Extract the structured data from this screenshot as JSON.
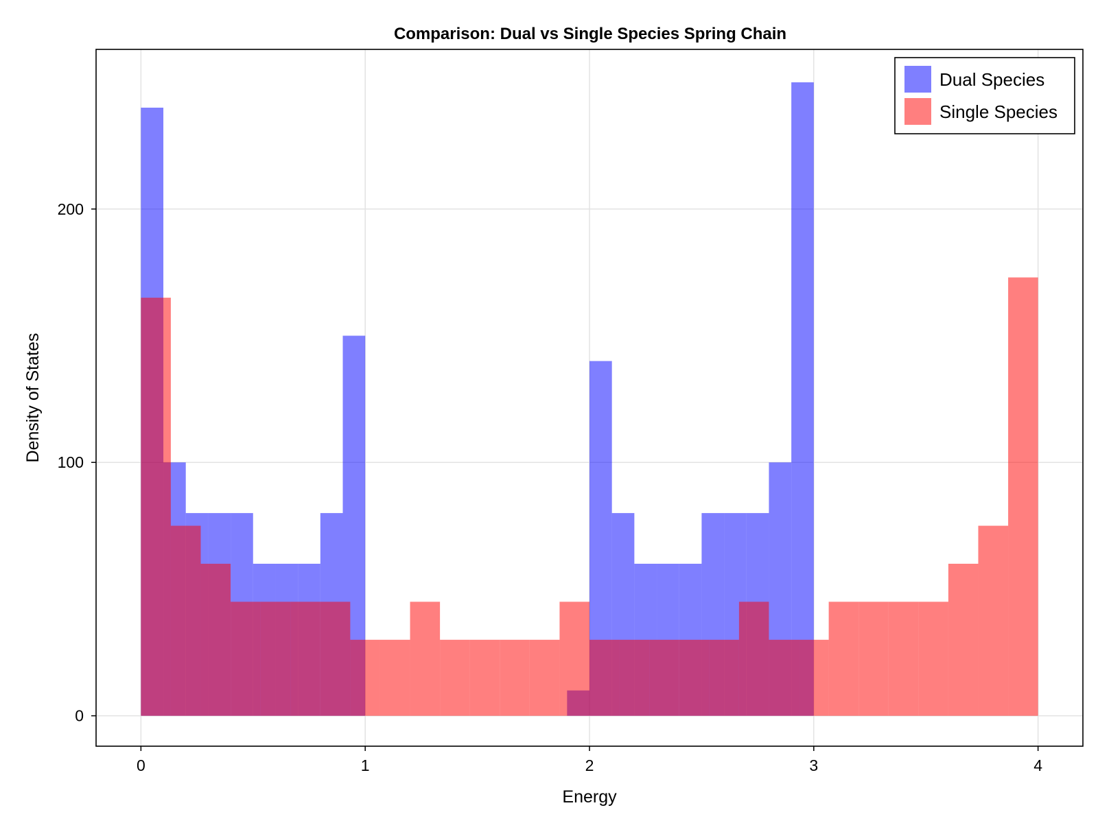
{
  "chart_data": {
    "type": "bar",
    "title": "Comparison: Dual vs Single Species Spring Chain",
    "xlabel": "Energy",
    "ylabel": "Density of States",
    "xlim": [
      -0.2,
      4.2
    ],
    "ylim": [
      -12,
      263
    ],
    "xticks": [
      "0",
      "1",
      "2",
      "3",
      "4"
    ],
    "yticks": [
      "0",
      "100",
      "200"
    ],
    "grid": true,
    "legend_position": "top-right",
    "series": [
      {
        "name": "Dual Species",
        "color": "#0000ff",
        "opacity": 0.5,
        "bins": [
          {
            "x0": 0.0,
            "x1": 0.1,
            "value": 240
          },
          {
            "x0": 0.1,
            "x1": 0.2,
            "value": 100
          },
          {
            "x0": 0.2,
            "x1": 0.3,
            "value": 80
          },
          {
            "x0": 0.3,
            "x1": 0.4,
            "value": 80
          },
          {
            "x0": 0.4,
            "x1": 0.5,
            "value": 80
          },
          {
            "x0": 0.5,
            "x1": 0.6,
            "value": 60
          },
          {
            "x0": 0.6,
            "x1": 0.7,
            "value": 60
          },
          {
            "x0": 0.7,
            "x1": 0.8,
            "value": 60
          },
          {
            "x0": 0.8,
            "x1": 0.9,
            "value": 80
          },
          {
            "x0": 0.9,
            "x1": 1.0,
            "value": 150
          },
          {
            "x0": 1.9,
            "x1": 2.0,
            "value": 10
          },
          {
            "x0": 2.0,
            "x1": 2.1,
            "value": 140
          },
          {
            "x0": 2.1,
            "x1": 2.2,
            "value": 80
          },
          {
            "x0": 2.2,
            "x1": 2.3,
            "value": 60
          },
          {
            "x0": 2.3,
            "x1": 2.4,
            "value": 60
          },
          {
            "x0": 2.4,
            "x1": 2.5,
            "value": 60
          },
          {
            "x0": 2.5,
            "x1": 2.6,
            "value": 80
          },
          {
            "x0": 2.6,
            "x1": 2.7,
            "value": 80
          },
          {
            "x0": 2.7,
            "x1": 2.8,
            "value": 80
          },
          {
            "x0": 2.8,
            "x1": 2.9,
            "value": 100
          },
          {
            "x0": 2.9,
            "x1": 3.0,
            "value": 250
          }
        ]
      },
      {
        "name": "Single Species",
        "color": "#ff0000",
        "opacity": 0.5,
        "bins": [
          {
            "x0": 0.0,
            "x1": 0.1333,
            "value": 165
          },
          {
            "x0": 0.1333,
            "x1": 0.2667,
            "value": 75
          },
          {
            "x0": 0.2667,
            "x1": 0.4,
            "value": 60
          },
          {
            "x0": 0.4,
            "x1": 0.5333,
            "value": 45
          },
          {
            "x0": 0.5333,
            "x1": 0.6667,
            "value": 45
          },
          {
            "x0": 0.6667,
            "x1": 0.8,
            "value": 45
          },
          {
            "x0": 0.8,
            "x1": 0.9333,
            "value": 45
          },
          {
            "x0": 0.9333,
            "x1": 1.0667,
            "value": 30
          },
          {
            "x0": 1.0667,
            "x1": 1.2,
            "value": 30
          },
          {
            "x0": 1.2,
            "x1": 1.3333,
            "value": 45
          },
          {
            "x0": 1.3333,
            "x1": 1.4667,
            "value": 30
          },
          {
            "x0": 1.4667,
            "x1": 1.6,
            "value": 30
          },
          {
            "x0": 1.6,
            "x1": 1.7333,
            "value": 30
          },
          {
            "x0": 1.7333,
            "x1": 1.8667,
            "value": 30
          },
          {
            "x0": 1.8667,
            "x1": 2.0,
            "value": 45
          },
          {
            "x0": 2.0,
            "x1": 2.1333,
            "value": 30
          },
          {
            "x0": 2.1333,
            "x1": 2.2667,
            "value": 30
          },
          {
            "x0": 2.2667,
            "x1": 2.4,
            "value": 30
          },
          {
            "x0": 2.4,
            "x1": 2.5333,
            "value": 30
          },
          {
            "x0": 2.5333,
            "x1": 2.6667,
            "value": 30
          },
          {
            "x0": 2.6667,
            "x1": 2.8,
            "value": 45
          },
          {
            "x0": 2.8,
            "x1": 2.9333,
            "value": 30
          },
          {
            "x0": 2.9333,
            "x1": 3.0667,
            "value": 30
          },
          {
            "x0": 3.0667,
            "x1": 3.2,
            "value": 45
          },
          {
            "x0": 3.2,
            "x1": 3.3333,
            "value": 45
          },
          {
            "x0": 3.3333,
            "x1": 3.4667,
            "value": 45
          },
          {
            "x0": 3.4667,
            "x1": 3.6,
            "value": 45
          },
          {
            "x0": 3.6,
            "x1": 3.7333,
            "value": 60
          },
          {
            "x0": 3.7333,
            "x1": 3.8667,
            "value": 75
          },
          {
            "x0": 3.8667,
            "x1": 4.0,
            "value": 173
          }
        ]
      }
    ]
  }
}
